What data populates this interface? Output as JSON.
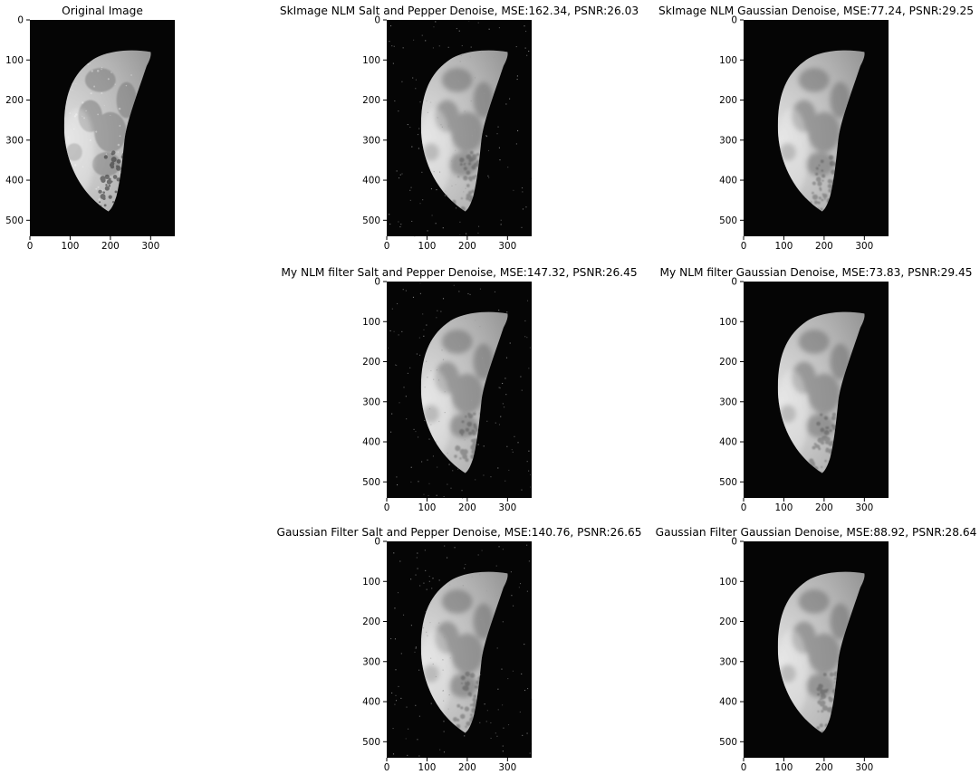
{
  "figure": {
    "background": "#ffffff",
    "panels": [
      {
        "id": "original",
        "title": "Original Image",
        "image": {
          "kind": "original",
          "noise": "none"
        },
        "x_ticks": [
          "0",
          "100",
          "200",
          "300"
        ],
        "y_ticks": [
          "0",
          "100",
          "200",
          "300",
          "400",
          "500"
        ]
      },
      {
        "id": "skimage-sp",
        "title": "SkImage NLM Salt and Pepper Denoise, MSE:162.34, PSNR:26.03",
        "image": {
          "kind": "denoised",
          "noise": "salt-pepper-residue"
        },
        "x_ticks": [
          "0",
          "100",
          "200",
          "300"
        ],
        "y_ticks": [
          "0",
          "100",
          "200",
          "300",
          "400",
          "500"
        ]
      },
      {
        "id": "skimage-gauss",
        "title": "SkImage NLM Gaussian Denoise, MSE:77.24, PSNR:29.25",
        "image": {
          "kind": "denoised",
          "noise": "none"
        },
        "x_ticks": [
          "0",
          "100",
          "200",
          "300"
        ],
        "y_ticks": [
          "0",
          "100",
          "200",
          "300",
          "400",
          "500"
        ]
      },
      {
        "id": "my-nlm-sp",
        "title": "My NLM filter Salt and Pepper Denoise, MSE:147.32, PSNR:26.45",
        "image": {
          "kind": "denoised",
          "noise": "salt-pepper-residue"
        },
        "x_ticks": [
          "0",
          "100",
          "200",
          "300"
        ],
        "y_ticks": [
          "0",
          "100",
          "200",
          "300",
          "400",
          "500"
        ]
      },
      {
        "id": "my-nlm-gauss",
        "title": "My NLM filter Gaussian Denoise, MSE:73.83, PSNR:29.45",
        "image": {
          "kind": "denoised",
          "noise": "none"
        },
        "x_ticks": [
          "0",
          "100",
          "200",
          "300"
        ],
        "y_ticks": [
          "0",
          "100",
          "200",
          "300",
          "400",
          "500"
        ]
      },
      {
        "id": "gaussian-sp",
        "title": "Gaussian Filter Salt and Pepper Denoise, MSE:140.76, PSNR:26.65",
        "image": {
          "kind": "denoised",
          "noise": "salt-pepper-residue"
        },
        "x_ticks": [
          "0",
          "100",
          "200",
          "300"
        ],
        "y_ticks": [
          "0",
          "100",
          "200",
          "300",
          "400",
          "500"
        ]
      },
      {
        "id": "gaussian-gauss",
        "title": "Gaussian Filter Gaussian Denoise, MSE:88.92, PSNR:28.64",
        "image": {
          "kind": "denoised",
          "noise": "none"
        },
        "x_ticks": [
          "0",
          "100",
          "200",
          "300"
        ],
        "y_ticks": [
          "0",
          "100",
          "200",
          "300",
          "400",
          "500"
        ]
      }
    ]
  }
}
